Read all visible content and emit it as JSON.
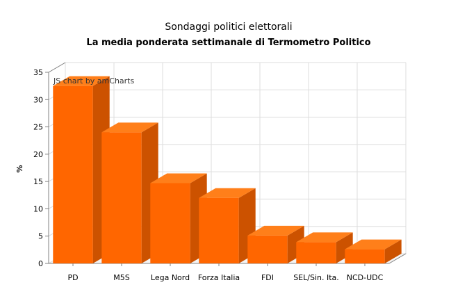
{
  "chart_data": {
    "type": "bar",
    "title": "Sondaggi politici elettorali",
    "subtitle": "La media ponderata settimanale di Termometro Politico",
    "ylabel": "%",
    "xlabel": "",
    "categories": [
      "PD",
      "M5S",
      "Lega Nord",
      "Forza Italia",
      "FDI",
      "SEL/Sin. Ita.",
      "NCD-UDC"
    ],
    "values": [
      32.5,
      24,
      14.7,
      12,
      5.1,
      3.9,
      2.6
    ],
    "ylim": [
      0,
      35
    ],
    "yticks": [
      "0",
      "5",
      "10",
      "15",
      "20",
      "25",
      "30",
      "35"
    ],
    "grid": true,
    "legend": "none",
    "credit": "JS chart by amCharts",
    "colors": {
      "bar_front": "#FF6600",
      "bar_top": "#FF7F1A",
      "bar_side": "#CC5200",
      "grid": "#DDDDDD",
      "axis": "#808080"
    }
  }
}
